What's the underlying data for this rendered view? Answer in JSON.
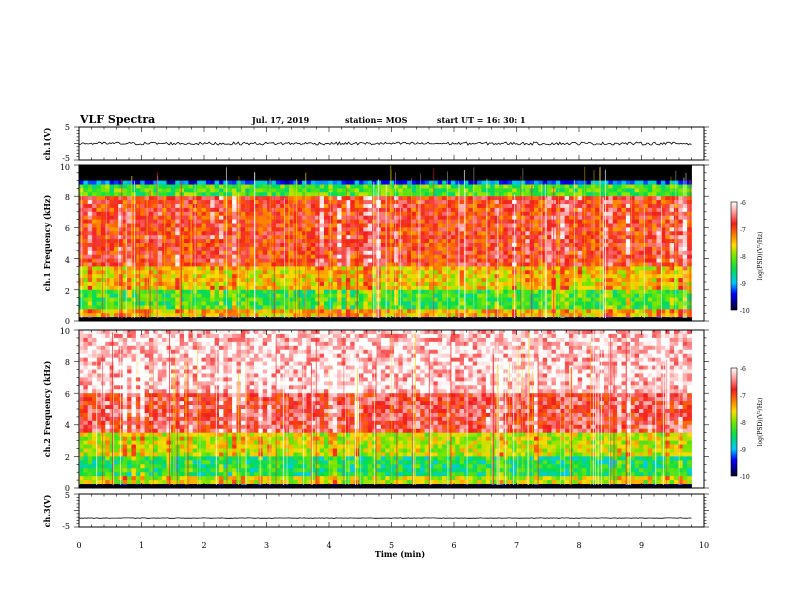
{
  "header": {
    "title": "VLF Spectra",
    "date": "Jul. 17, 2019",
    "station": "station= MOS",
    "start": "start UT = 16: 30: 1"
  },
  "chart_data": [
    {
      "type": "line",
      "panel": "ch1-waveform",
      "ylabel": "ch.1(V)",
      "ylim": [
        -5,
        5
      ],
      "yticks": [
        "5",
        "-5"
      ],
      "xlim": [
        0,
        10
      ],
      "series": [
        {
          "x": [
            0,
            9.8
          ],
          "values": [
            0,
            0
          ]
        }
      ]
    },
    {
      "type": "heatmap",
      "panel": "ch1-spectrogram",
      "ylabel": "ch.1 Frequency (kHz)",
      "ylim": [
        0,
        10
      ],
      "yticks": [
        "0",
        "2",
        "4",
        "6",
        "8",
        "10"
      ],
      "xlim": [
        0,
        10
      ],
      "data_end_min": 9.8,
      "colorbar": {
        "label": "log(PSD)(V²/Hz)",
        "range": [
          -10,
          -6
        ],
        "ticks": [
          "-6",
          "-7",
          "-8",
          "-9",
          "-10"
        ]
      },
      "band_profile_khz": [
        {
          "from": 0.0,
          "to": 0.2,
          "level": -10
        },
        {
          "from": 0.2,
          "to": 0.8,
          "level": -7.5
        },
        {
          "from": 0.8,
          "to": 2.0,
          "level": -8.3
        },
        {
          "from": 2.0,
          "to": 3.5,
          "level": -7.6
        },
        {
          "from": 3.5,
          "to": 7.9,
          "level": -6.9
        },
        {
          "from": 7.9,
          "to": 8.8,
          "level": -8.2
        },
        {
          "from": 8.8,
          "to": 9.1,
          "level": -9.2
        },
        {
          "from": 9.1,
          "to": 10.0,
          "level": -11
        }
      ]
    },
    {
      "type": "heatmap",
      "panel": "ch2-spectrogram",
      "ylabel": "ch.2 Frequency (kHz)",
      "ylim": [
        0,
        10
      ],
      "yticks": [
        "0",
        "2",
        "4",
        "6",
        "8",
        "10"
      ],
      "xlim": [
        0,
        10
      ],
      "data_end_min": 9.8,
      "colorbar": {
        "label": "log(PSD)(V²/Hz)",
        "range": [
          -10,
          -6
        ],
        "ticks": [
          "-6",
          "-7",
          "-8",
          "-9",
          "-10"
        ]
      },
      "band_profile_khz": [
        {
          "from": 0.0,
          "to": 0.2,
          "level": -10
        },
        {
          "from": 0.2,
          "to": 0.8,
          "level": -7.8
        },
        {
          "from": 0.8,
          "to": 2.0,
          "level": -8.5
        },
        {
          "from": 2.0,
          "to": 3.6,
          "level": -7.8
        },
        {
          "from": 3.6,
          "to": 6.0,
          "level": -6.7
        },
        {
          "from": 6.0,
          "to": 10.0,
          "level": -6.2
        }
      ]
    },
    {
      "type": "line",
      "panel": "ch3-waveform",
      "ylabel": "ch.3(V)",
      "ylim": [
        -5,
        5
      ],
      "yticks": [
        "5",
        "-5"
      ],
      "xlim": [
        0,
        10
      ],
      "xlabel": "Time (min)",
      "xticks": [
        "0",
        "1",
        "2",
        "3",
        "4",
        "5",
        "6",
        "7",
        "8",
        "9",
        "10"
      ],
      "series": [
        {
          "x": [
            0,
            9.8
          ],
          "values": [
            -2.3,
            -2.3
          ]
        }
      ]
    }
  ]
}
